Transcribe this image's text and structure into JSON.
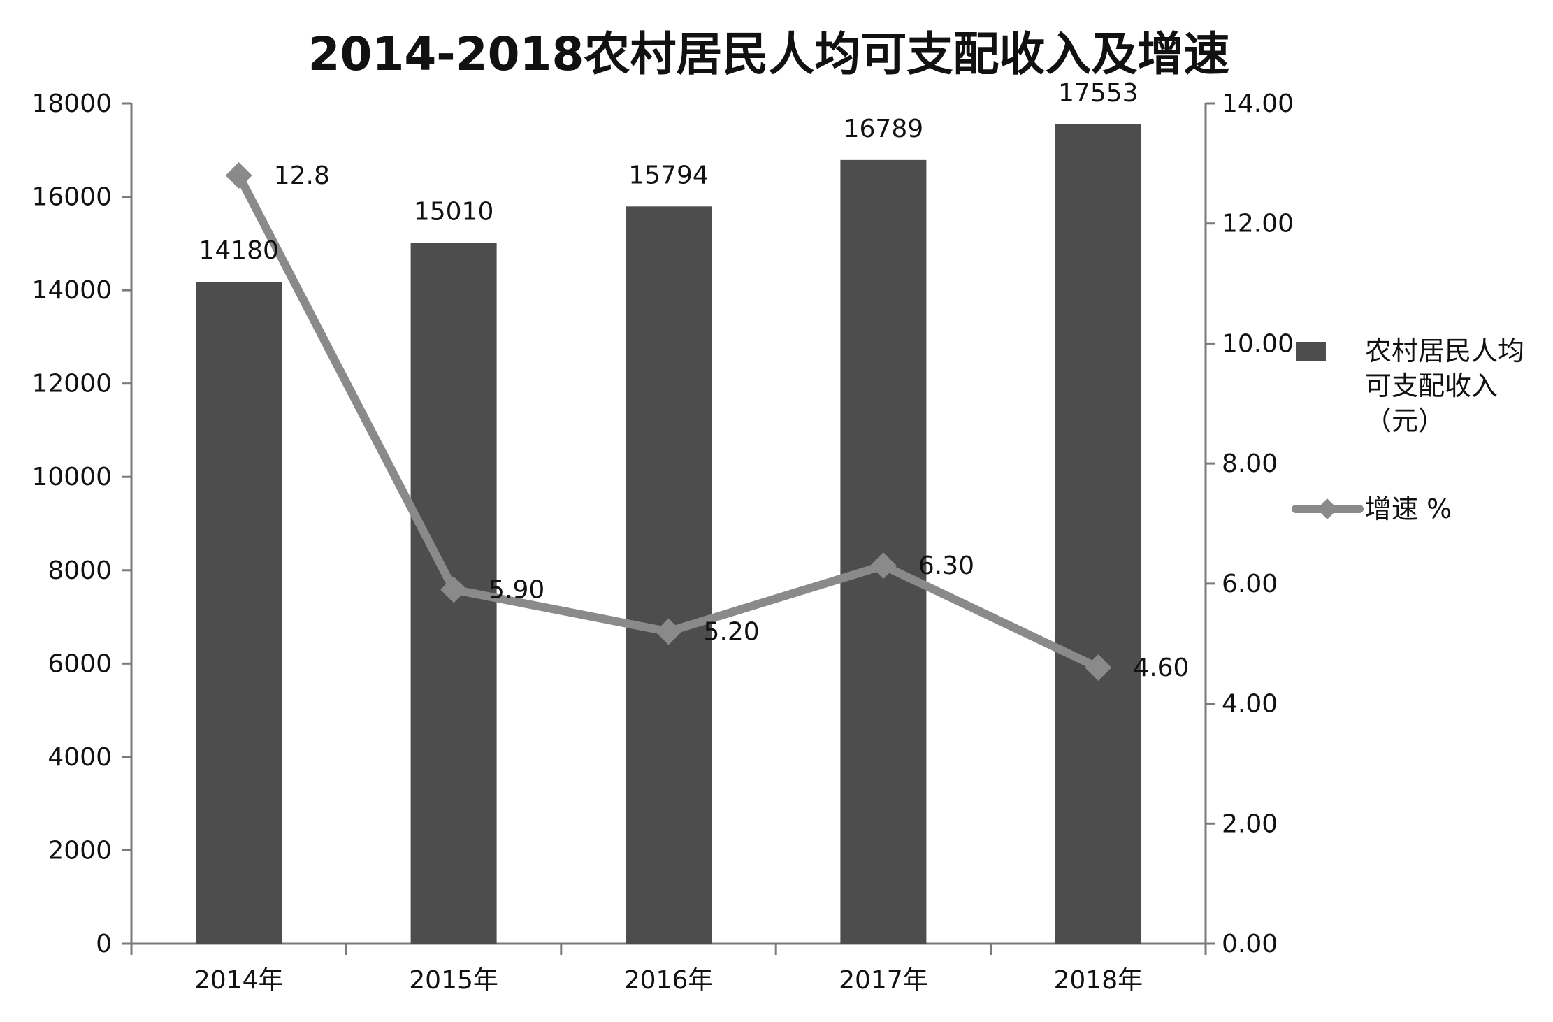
{
  "chart_data": {
    "type": "bar",
    "title": "2014-2018农村居民人均可支配收入及增速",
    "categories": [
      "2014年",
      "2015年",
      "2016年",
      "2017年",
      "2018年"
    ],
    "series": [
      {
        "name": "农村居民人均可支配收入（元）",
        "type": "bar",
        "axis": "left",
        "values": [
          14180,
          15010,
          15794,
          16789,
          17553
        ],
        "labels": [
          "14180",
          "15010",
          "15794",
          "16789",
          "17553"
        ]
      },
      {
        "name": "增速 %",
        "type": "line",
        "axis": "right",
        "values": [
          12.8,
          5.9,
          5.2,
          6.3,
          4.6
        ],
        "labels": [
          "12.8",
          "5.90",
          "5.20",
          "6.30",
          "4.60"
        ]
      }
    ],
    "y_left": {
      "ylim": [
        0,
        18000
      ],
      "ticks": [
        "0",
        "2000",
        "4000",
        "6000",
        "8000",
        "10000",
        "12000",
        "14000",
        "16000",
        "18000"
      ]
    },
    "y_right": {
      "ylim": [
        0,
        14
      ],
      "ticks": [
        "0.00",
        "2.00",
        "4.00",
        "6.00",
        "8.00",
        "10.00",
        "12.00",
        "14.00"
      ]
    },
    "legend": {
      "placement": "right",
      "bar_label_lines": [
        "农村居民人均",
        "可支配收入",
        "（元）"
      ],
      "line_label": "增速 %"
    },
    "grid": false,
    "colors": {
      "bar": "#4d4d4d",
      "line": "#8a8a8a",
      "axis": "#7a7a7a",
      "text": "#111111"
    }
  }
}
